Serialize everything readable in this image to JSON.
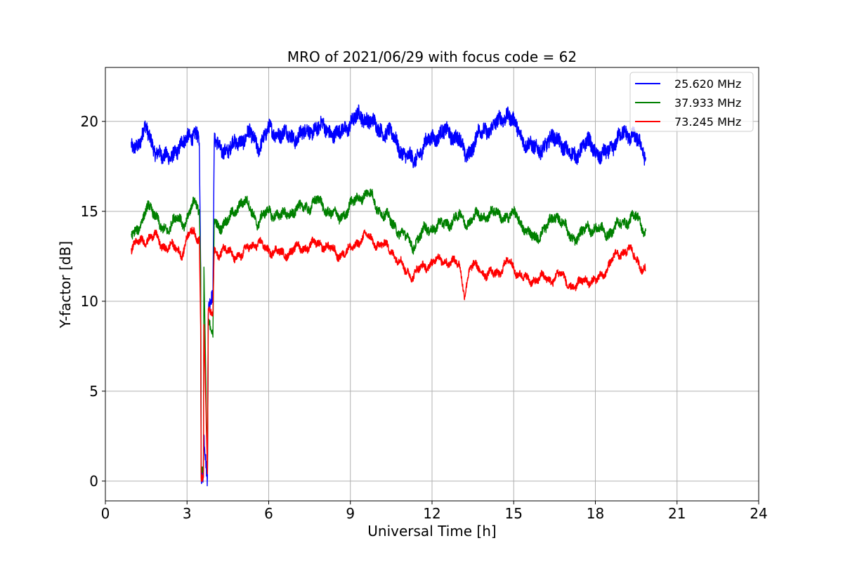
{
  "chart_data": {
    "type": "line",
    "title": "MRO of 2021/06/29 with focus code = 62",
    "xlabel": "Universal Time [h]",
    "ylabel": "Y-factor [dB]",
    "xlim": [
      0,
      24
    ],
    "ylim": [
      -1.1,
      23.0
    ],
    "xticks": [
      0,
      3,
      6,
      9,
      12,
      15,
      18,
      21,
      24
    ],
    "yticks": [
      0,
      5,
      10,
      15,
      20
    ],
    "grid": true,
    "legend_position": "top-right",
    "series": [
      {
        "name": "25.620 MHz",
        "color": "#0000ff",
        "noise": 0.8,
        "x": [
          0.95,
          1.2,
          1.5,
          1.8,
          2.1,
          2.4,
          2.7,
          3.0,
          3.3,
          3.45,
          3.5,
          3.52,
          3.6,
          3.62,
          3.75,
          3.78,
          3.95,
          4.0,
          4.1,
          4.5,
          5.0,
          5.3,
          5.6,
          6.0,
          6.5,
          7.0,
          7.5,
          8.0,
          8.5,
          9.0,
          9.3,
          9.6,
          10.0,
          10.5,
          11.0,
          11.3,
          11.6,
          12.0,
          12.5,
          13.0,
          13.2,
          13.4,
          13.7,
          14.0,
          14.5,
          14.8,
          15.1,
          15.4,
          15.8,
          16.2,
          16.6,
          17.0,
          17.4,
          17.8,
          18.2,
          18.6,
          19.0,
          19.4,
          19.85
        ],
        "y": [
          18.7,
          18.7,
          19.6,
          18.5,
          17.9,
          18.2,
          18.3,
          19.3,
          19.2,
          18.8,
          12.0,
          0.2,
          0.2,
          2.5,
          0.3,
          9.8,
          10.2,
          19.0,
          18.6,
          18.4,
          19.0,
          19.3,
          18.6,
          19.5,
          19.3,
          19.1,
          19.5,
          19.7,
          19.2,
          19.9,
          20.3,
          20.2,
          19.6,
          19.3,
          18.1,
          17.8,
          18.4,
          19.1,
          19.4,
          19.1,
          18.0,
          18.4,
          19.3,
          19.5,
          20.0,
          20.5,
          19.6,
          18.9,
          18.4,
          18.7,
          19.2,
          18.1,
          18.3,
          18.9,
          17.9,
          18.6,
          19.3,
          19.3,
          18.0
        ]
      },
      {
        "name": "37.933 MHz",
        "color": "#008000",
        "noise": 0.5,
        "x": [
          0.95,
          1.2,
          1.4,
          1.55,
          1.8,
          2.0,
          2.3,
          2.6,
          2.9,
          3.2,
          3.45,
          3.5,
          3.52,
          3.6,
          3.62,
          3.75,
          3.78,
          3.95,
          4.0,
          4.1,
          4.5,
          5.0,
          5.3,
          5.6,
          6.0,
          6.5,
          7.0,
          7.5,
          7.8,
          8.2,
          8.6,
          9.0,
          9.4,
          9.7,
          10.0,
          10.5,
          11.0,
          11.3,
          11.7,
          12.0,
          12.5,
          13.0,
          13.3,
          13.6,
          14.0,
          14.4,
          14.8,
          15.1,
          15.5,
          15.8,
          16.2,
          16.5,
          16.8,
          17.1,
          17.4,
          17.7,
          18.0,
          18.5,
          19.0,
          19.5,
          19.85
        ],
        "y": [
          14.0,
          13.9,
          14.4,
          15.6,
          14.9,
          14.0,
          14.1,
          14.6,
          14.3,
          15.4,
          15.1,
          11.8,
          0.6,
          0.6,
          11.9,
          0.5,
          8.7,
          8.0,
          14.5,
          14.2,
          14.4,
          15.6,
          15.2,
          14.4,
          15.0,
          14.7,
          15.1,
          15.3,
          15.6,
          15.0,
          14.6,
          15.3,
          15.9,
          16.0,
          15.2,
          14.4,
          13.6,
          13.1,
          13.9,
          14.1,
          14.3,
          14.7,
          14.4,
          14.7,
          14.8,
          14.9,
          14.6,
          14.9,
          13.7,
          13.6,
          14.0,
          14.9,
          14.3,
          13.6,
          13.5,
          14.2,
          14.0,
          13.8,
          14.4,
          14.7,
          13.9
        ]
      },
      {
        "name": "73.245 MHz",
        "color": "#ff0000",
        "noise": 0.4,
        "x": [
          0.95,
          1.2,
          1.5,
          1.8,
          2.1,
          2.4,
          2.6,
          2.8,
          3.1,
          3.45,
          3.5,
          3.52,
          3.6,
          3.62,
          3.75,
          3.78,
          3.95,
          4.0,
          4.1,
          4.5,
          5.0,
          5.3,
          5.7,
          6.0,
          6.5,
          7.0,
          7.5,
          8.0,
          8.5,
          9.0,
          9.3,
          9.6,
          10.0,
          10.5,
          11.0,
          11.3,
          11.6,
          12.0,
          12.5,
          13.0,
          13.2,
          13.4,
          13.7,
          14.0,
          14.5,
          14.8,
          15.1,
          15.5,
          15.9,
          16.3,
          16.7,
          17.0,
          17.3,
          17.6,
          18.0,
          18.4,
          18.8,
          19.2,
          19.85
        ],
        "y": [
          13.0,
          13.2,
          13.5,
          13.6,
          13.1,
          13.0,
          12.9,
          12.7,
          13.8,
          13.6,
          8.6,
          0.2,
          0.2,
          8.7,
          0.4,
          9.2,
          9.4,
          12.9,
          12.7,
          12.8,
          12.4,
          13.2,
          13.1,
          12.9,
          12.6,
          12.9,
          13.1,
          13.2,
          12.6,
          12.8,
          13.4,
          13.6,
          13.2,
          12.9,
          11.7,
          11.5,
          11.8,
          12.2,
          12.3,
          12.0,
          10.5,
          11.8,
          12.0,
          11.4,
          11.7,
          12.2,
          11.7,
          11.1,
          11.3,
          11.2,
          11.5,
          11.0,
          10.7,
          11.3,
          11.0,
          11.8,
          12.6,
          12.9,
          11.7
        ]
      }
    ]
  }
}
